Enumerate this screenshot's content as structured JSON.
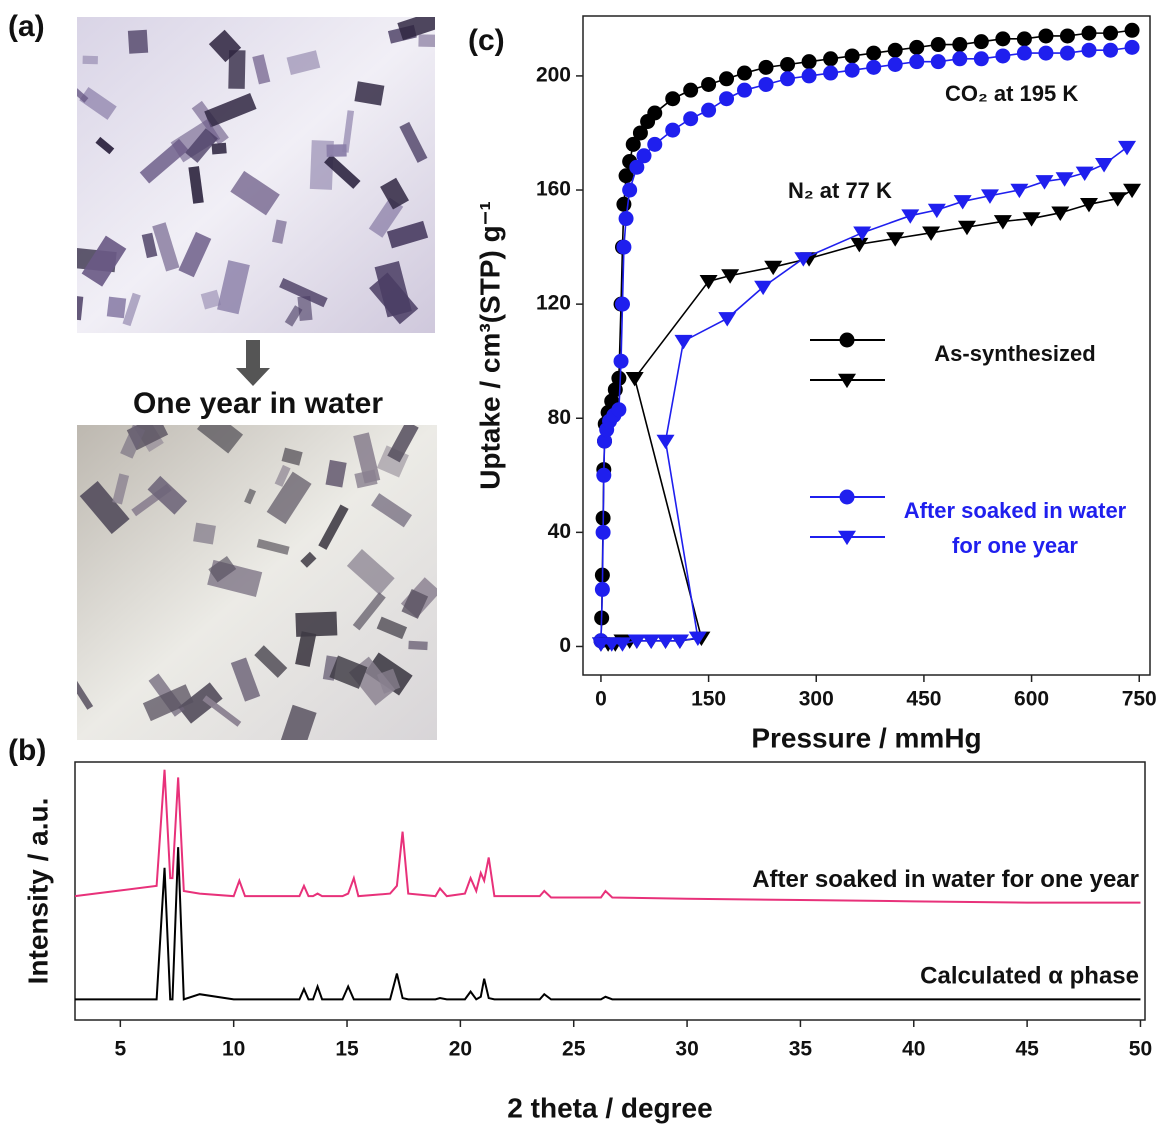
{
  "panel_labels": [
    "(a)",
    "(b)",
    "(c)"
  ],
  "photo_caption": "One year in water",
  "chart_data": [
    {
      "type": "line",
      "xlabel": "Pressure / mmHg",
      "ylabel": "Uptake / cm³(STP) g⁻¹",
      "xlim": [
        -25,
        765
      ],
      "ylim": [
        -10,
        221
      ],
      "xticks": [
        0,
        150,
        300,
        450,
        600,
        750
      ],
      "yticks": [
        0,
        40,
        80,
        120,
        160,
        200
      ],
      "legend": true,
      "annotations": [
        "CO₂ at 195 K",
        "N₂ at 77 K"
      ],
      "series": [
        {
          "name": "As-synthesized",
          "color": "#000000",
          "marker": "circle",
          "x": [
            0,
            1,
            2,
            3,
            4,
            5,
            6,
            10,
            15,
            20,
            25,
            28,
            30,
            32,
            35,
            40,
            45,
            55,
            65,
            75,
            100,
            125,
            150,
            175,
            200,
            230,
            260,
            290,
            320,
            350,
            380,
            410,
            440,
            470,
            500,
            530,
            560,
            590,
            620,
            650,
            680,
            710,
            740
          ],
          "values": [
            2,
            10,
            25,
            45,
            62,
            72,
            78,
            82,
            86,
            90,
            94,
            120,
            140,
            155,
            165,
            170,
            176,
            180,
            184,
            187,
            192,
            195,
            197,
            199,
            201,
            203,
            204,
            205,
            206,
            207,
            208,
            209,
            210,
            211,
            211,
            212,
            213,
            213,
            214,
            214,
            215,
            215,
            216
          ]
        },
        {
          "name": "After soaked in water for one year",
          "color": "#1f1fee",
          "marker": "circle",
          "x": [
            0,
            2,
            3,
            4,
            5,
            8,
            12,
            18,
            25,
            28,
            30,
            32,
            35,
            40,
            50,
            60,
            75,
            100,
            125,
            150,
            175,
            200,
            230,
            260,
            290,
            320,
            350,
            380,
            410,
            440,
            470,
            500,
            530,
            560,
            590,
            620,
            650,
            680,
            710,
            740
          ],
          "values": [
            2,
            20,
            40,
            60,
            72,
            76,
            79,
            81,
            83,
            100,
            120,
            140,
            150,
            160,
            168,
            172,
            176,
            181,
            185,
            188,
            192,
            195,
            197,
            199,
            200,
            201,
            202,
            203,
            204,
            205,
            205,
            206,
            206,
            207,
            208,
            208,
            208,
            209,
            209,
            210
          ]
        },
        {
          "color": "#000000",
          "marker": "triangle",
          "x": [
            0,
            10,
            20,
            30,
            40,
            50,
            70,
            90,
            110,
            140,
            47,
            150,
            180,
            240,
            290,
            360,
            410,
            460,
            510,
            560,
            600,
            640,
            680,
            720,
            740
          ],
          "values": [
            1,
            1,
            1,
            2,
            2,
            2,
            2,
            2,
            2,
            3,
            94,
            128,
            130,
            133,
            136,
            141,
            143,
            145,
            147,
            149,
            150,
            152,
            155,
            157,
            160
          ]
        },
        {
          "color": "#1f1fee",
          "marker": "triangle",
          "x": [
            0,
            15,
            30,
            50,
            70,
            90,
            110,
            135,
            90,
            115,
            176,
            226,
            282,
            364,
            431,
            468,
            504,
            542,
            583,
            618,
            646,
            674,
            701,
            733
          ],
          "values": [
            1,
            1,
            1,
            2,
            2,
            2,
            2,
            3,
            72,
            107,
            115,
            126,
            136,
            145,
            151,
            153,
            156,
            158,
            160,
            163,
            164,
            166,
            169,
            175
          ]
        }
      ]
    },
    {
      "type": "line",
      "xlabel": "2 theta / degree",
      "ylabel": "Intensity / a.u.",
      "xlim": [
        3,
        50.2
      ],
      "ylim": [
        0,
        100
      ],
      "xticks": [
        5,
        10,
        15,
        20,
        25,
        30,
        35,
        40,
        45,
        50
      ],
      "legend": false,
      "x": [
        3,
        6.6,
        6.95,
        7.2,
        7.3,
        7.55,
        7.8,
        8.5,
        10.0,
        10.25,
        10.5,
        12.9,
        13.1,
        13.3,
        13.5,
        13.7,
        13.9,
        14.8,
        15.05,
        15.3,
        15.5,
        16.9,
        17.2,
        17.45,
        17.7,
        18.9,
        19.1,
        19.4,
        20.2,
        20.45,
        20.7,
        20.9,
        21.05,
        21.25,
        21.5,
        22.0,
        23.5,
        23.7,
        24.0,
        26.2,
        26.4,
        26.7,
        30,
        35,
        40,
        45,
        50
      ],
      "series": [
        {
          "name": "After soaked in water for one year",
          "color": "#e8317a",
          "values": [
            48,
            52,
            97,
            55,
            55,
            94,
            50,
            49,
            48,
            54,
            48,
            48,
            52,
            48,
            48,
            49,
            48,
            48,
            49,
            55,
            48,
            49,
            52,
            73,
            49,
            48,
            51,
            48,
            49,
            55,
            50,
            57,
            54,
            63,
            48,
            48,
            48,
            50,
            47.5,
            47.5,
            50,
            47.5,
            47,
            46.5,
            46,
            45.5,
            45.5
          ]
        },
        {
          "name": "Calculated α phase",
          "color": "#000000",
          "values": [
            8,
            8,
            59,
            8,
            8,
            67,
            8,
            10,
            8,
            8,
            8,
            8,
            12,
            8,
            8,
            13,
            8,
            8,
            13,
            8,
            8,
            8,
            18,
            8.5,
            8,
            8,
            8.5,
            8,
            8,
            11,
            8,
            9,
            16,
            8.5,
            8,
            8,
            8,
            10,
            8,
            8,
            9,
            8,
            8,
            8,
            8,
            8,
            8
          ]
        }
      ]
    }
  ]
}
